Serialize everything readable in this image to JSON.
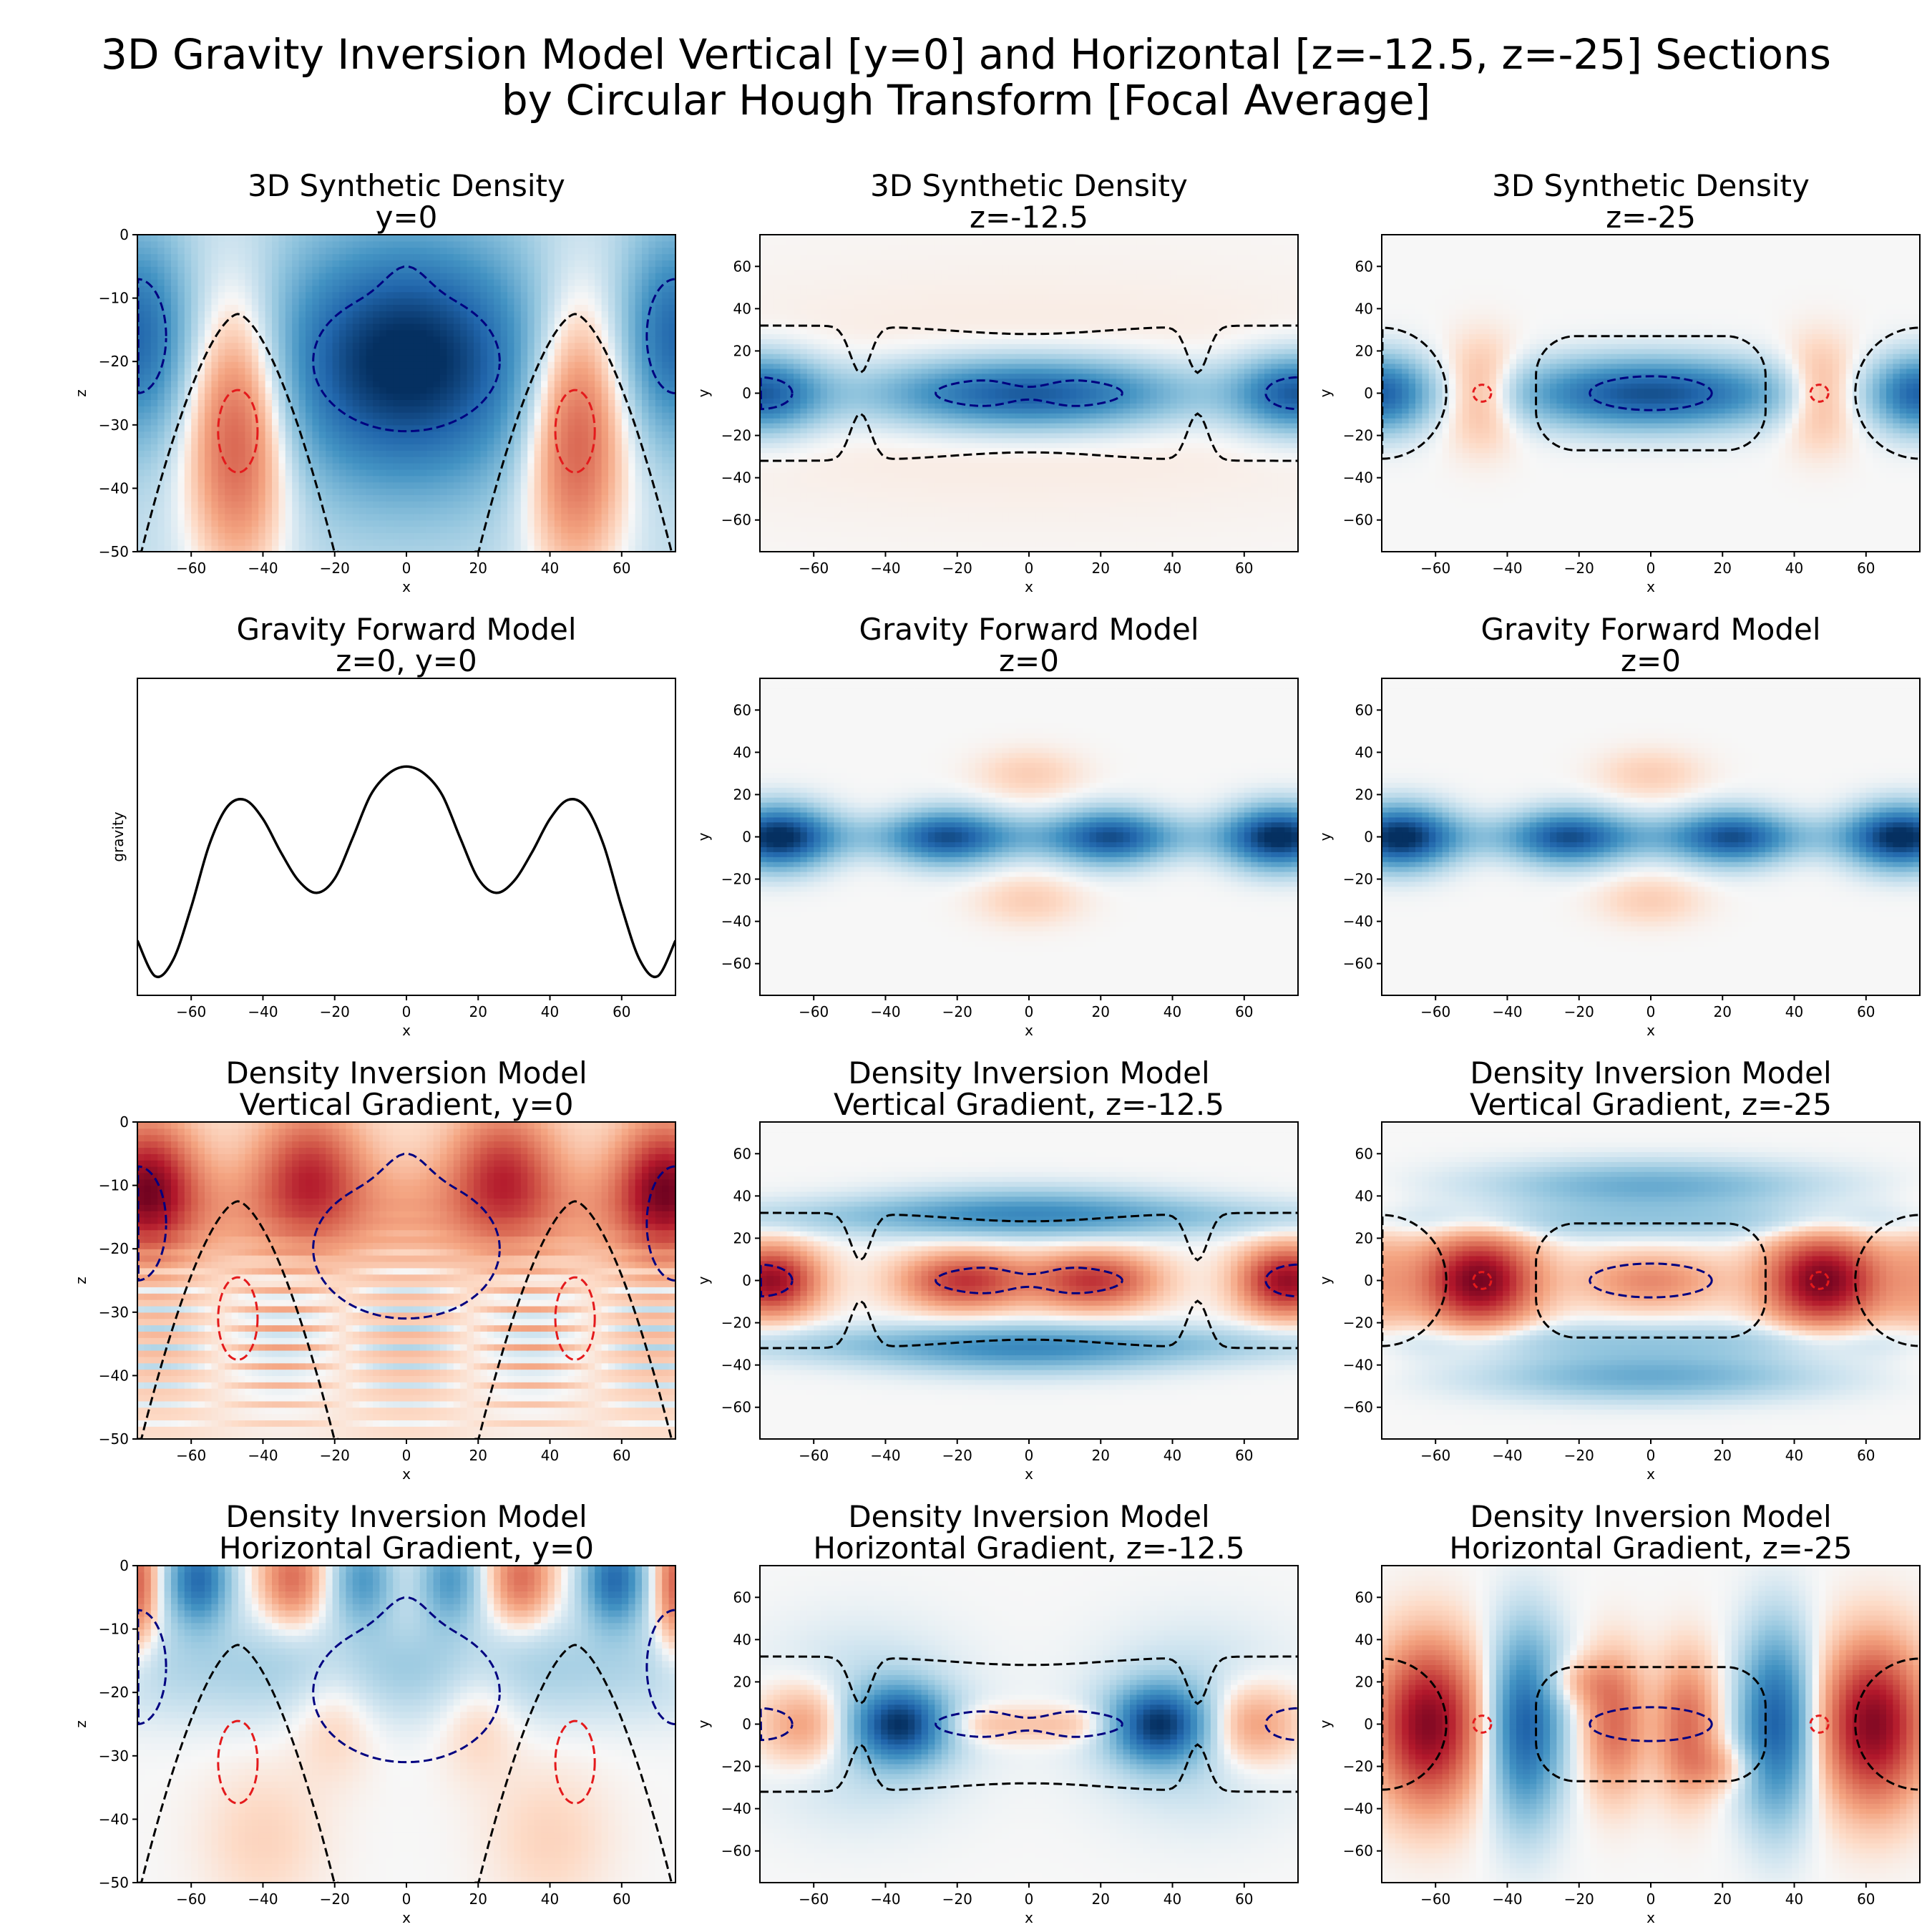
{
  "figure": {
    "title_line1": "3D Gravity Inversion Model Vertical [y=0] and Horizontal [z=-12.5, z=-25] Sections",
    "title_line2": "by Circular Hough Transform [Focal Average]"
  },
  "colors": {
    "negative": "#08306b",
    "positive": "#67001f",
    "contour_dark": "#000000",
    "contour_blue": "#000080",
    "contour_red": "#e41a1c",
    "line": "#000000"
  },
  "chart_data": [
    {
      "id": "p00",
      "type": "heatmap",
      "field": "density_vertical",
      "title_line1": "3D Synthetic Density",
      "title_line2": "y=0",
      "xlabel": "x",
      "ylabel": "z",
      "xlim": [
        -75,
        75
      ],
      "ylim": [
        -50,
        0
      ],
      "xticks": [
        -60,
        -40,
        -20,
        0,
        20,
        40,
        60
      ],
      "yticks": [
        0,
        -10,
        -20,
        -30,
        -40,
        -50
      ],
      "contours": true,
      "bodies": [
        {
          "x": 0,
          "z": -20,
          "sign": "negative"
        },
        {
          "x": -47,
          "z": -31,
          "sign": "positive"
        },
        {
          "x": 47,
          "z": -31,
          "sign": "positive"
        },
        {
          "x": -75,
          "z": -16,
          "sign": "negative"
        },
        {
          "x": 75,
          "z": -16,
          "sign": "negative"
        }
      ]
    },
    {
      "id": "p01",
      "type": "heatmap",
      "field": "density_horizontal",
      "title_line1": "3D Synthetic Density",
      "title_line2": "z=-12.5",
      "xlabel": "x",
      "ylabel": "y",
      "xlim": [
        -75,
        75
      ],
      "ylim": [
        -75,
        75
      ],
      "xticks": [
        -60,
        -40,
        -20,
        0,
        20,
        40,
        60
      ],
      "yticks": [
        60,
        40,
        20,
        0,
        -20,
        -40,
        -60
      ],
      "contours": true,
      "bodies": [
        {
          "x": 0,
          "y": 0,
          "sign": "negative"
        },
        {
          "x": -75,
          "y": 0,
          "sign": "negative"
        },
        {
          "x": 75,
          "y": 0,
          "sign": "negative"
        }
      ]
    },
    {
      "id": "p02",
      "type": "heatmap",
      "field": "density_horizontal_deep",
      "title_line1": "3D Synthetic Density",
      "title_line2": "z=-25",
      "xlabel": "x",
      "ylabel": "y",
      "xlim": [
        -75,
        75
      ],
      "ylim": [
        -75,
        75
      ],
      "xticks": [
        -60,
        -40,
        -20,
        0,
        20,
        40,
        60
      ],
      "yticks": [
        60,
        40,
        20,
        0,
        -20,
        -40,
        -60
      ],
      "contours": true,
      "bodies": [
        {
          "x": 0,
          "y": 0,
          "sign": "negative"
        },
        {
          "x": -47,
          "y": 0,
          "sign": "positive"
        },
        {
          "x": 47,
          "y": 0,
          "sign": "positive"
        },
        {
          "x": -75,
          "y": 0,
          "sign": "negative"
        },
        {
          "x": 75,
          "y": 0,
          "sign": "negative"
        }
      ]
    },
    {
      "id": "p10",
      "type": "line",
      "title_line1": "Gravity Forward Model",
      "title_line2": "z=0, y=0",
      "xlabel": "x",
      "ylabel": "gravity",
      "xlim": [
        -75,
        75
      ],
      "ylim": [
        -1.15,
        0.18
      ],
      "xticks": [
        -60,
        -40,
        -20,
        0,
        20,
        40,
        60
      ],
      "x": [
        -75,
        -70,
        -65,
        -60,
        -55,
        -50,
        -45,
        -40,
        -35,
        -30,
        -25,
        -20,
        -15,
        -10,
        -5,
        0,
        5,
        10,
        15,
        20,
        25,
        30,
        35,
        40,
        45,
        50,
        55,
        60,
        65,
        70,
        75
      ],
      "y": [
        -0.92,
        -1.07,
        -1.0,
        -0.78,
        -0.52,
        -0.36,
        -0.33,
        -0.41,
        -0.55,
        -0.67,
        -0.72,
        -0.66,
        -0.49,
        -0.31,
        -0.22,
        -0.19,
        -0.22,
        -0.31,
        -0.49,
        -0.66,
        -0.72,
        -0.67,
        -0.55,
        -0.41,
        -0.33,
        -0.36,
        -0.52,
        -0.78,
        -1.0,
        -1.07,
        -0.92
      ]
    },
    {
      "id": "p11",
      "type": "heatmap",
      "field": "gravity_map",
      "title_line1": "Gravity Forward Model",
      "title_line2": "z=0",
      "xlabel": "x",
      "ylabel": "y",
      "xlim": [
        -75,
        75
      ],
      "ylim": [
        -75,
        75
      ],
      "xticks": [
        -60,
        -40,
        -20,
        0,
        20,
        40,
        60
      ],
      "yticks": [
        60,
        40,
        20,
        0,
        -20,
        -40,
        -60
      ],
      "contours": false
    },
    {
      "id": "p12",
      "type": "heatmap",
      "field": "gravity_map",
      "title_line1": "Gravity Forward Model",
      "title_line2": "z=0",
      "xlabel": "x",
      "ylabel": "y",
      "xlim": [
        -75,
        75
      ],
      "ylim": [
        -75,
        75
      ],
      "xticks": [
        -60,
        -40,
        -20,
        0,
        20,
        40,
        60
      ],
      "yticks": [
        60,
        40,
        20,
        0,
        -20,
        -40,
        -60
      ],
      "contours": false
    },
    {
      "id": "p20",
      "type": "heatmap",
      "field": "vgrad_vertical",
      "title_line1": "Density Inversion Model",
      "title_line2": "Vertical Gradient, y=0",
      "xlabel": "x",
      "ylabel": "z",
      "xlim": [
        -75,
        75
      ],
      "ylim": [
        -50,
        0
      ],
      "xticks": [
        -60,
        -40,
        -20,
        0,
        20,
        40,
        60
      ],
      "yticks": [
        0,
        -10,
        -20,
        -30,
        -40,
        -50
      ],
      "contours": true
    },
    {
      "id": "p21",
      "type": "heatmap",
      "field": "vgrad_horizontal",
      "title_line1": "Density Inversion Model",
      "title_line2": "Vertical Gradient, z=-12.5",
      "xlabel": "x",
      "ylabel": "y",
      "xlim": [
        -75,
        75
      ],
      "ylim": [
        -75,
        75
      ],
      "xticks": [
        -60,
        -40,
        -20,
        0,
        20,
        40,
        60
      ],
      "yticks": [
        60,
        40,
        20,
        0,
        -20,
        -40,
        -60
      ],
      "contours": true
    },
    {
      "id": "p22",
      "type": "heatmap",
      "field": "vgrad_horizontal_deep",
      "title_line1": "Density Inversion Model",
      "title_line2": "Vertical Gradient, z=-25",
      "xlabel": "x",
      "ylabel": "y",
      "xlim": [
        -75,
        75
      ],
      "ylim": [
        -75,
        75
      ],
      "xticks": [
        -60,
        -40,
        -20,
        0,
        20,
        40,
        60
      ],
      "yticks": [
        60,
        40,
        20,
        0,
        -20,
        -40,
        -60
      ],
      "contours": true
    },
    {
      "id": "p30",
      "type": "heatmap",
      "field": "hgrad_vertical",
      "title_line1": "Density Inversion Model",
      "title_line2": "Horizontal Gradient, y=0",
      "xlabel": "x",
      "ylabel": "z",
      "xlim": [
        -75,
        75
      ],
      "ylim": [
        -50,
        0
      ],
      "xticks": [
        -60,
        -40,
        -20,
        0,
        20,
        40,
        60
      ],
      "yticks": [
        0,
        -10,
        -20,
        -30,
        -40,
        -50
      ],
      "contours": true
    },
    {
      "id": "p31",
      "type": "heatmap",
      "field": "hgrad_horizontal",
      "title_line1": "Density Inversion Model",
      "title_line2": "Horizontal Gradient, z=-12.5",
      "xlabel": "x",
      "ylabel": "y",
      "xlim": [
        -75,
        75
      ],
      "ylim": [
        -75,
        75
      ],
      "xticks": [
        -60,
        -40,
        -20,
        0,
        20,
        40,
        60
      ],
      "yticks": [
        60,
        40,
        20,
        0,
        -20,
        -40,
        -60
      ],
      "contours": true
    },
    {
      "id": "p32",
      "type": "heatmap",
      "field": "hgrad_horizontal_deep",
      "title_line1": "Density Inversion Model",
      "title_line2": "Horizontal Gradient, z=-25",
      "xlabel": "x",
      "ylabel": "y",
      "xlim": [
        -75,
        75
      ],
      "ylim": [
        -75,
        75
      ],
      "xticks": [
        -60,
        -40,
        -20,
        0,
        20,
        40,
        60
      ],
      "yticks": [
        60,
        40,
        20,
        0,
        -20,
        -40,
        -60
      ],
      "contours": true
    }
  ]
}
